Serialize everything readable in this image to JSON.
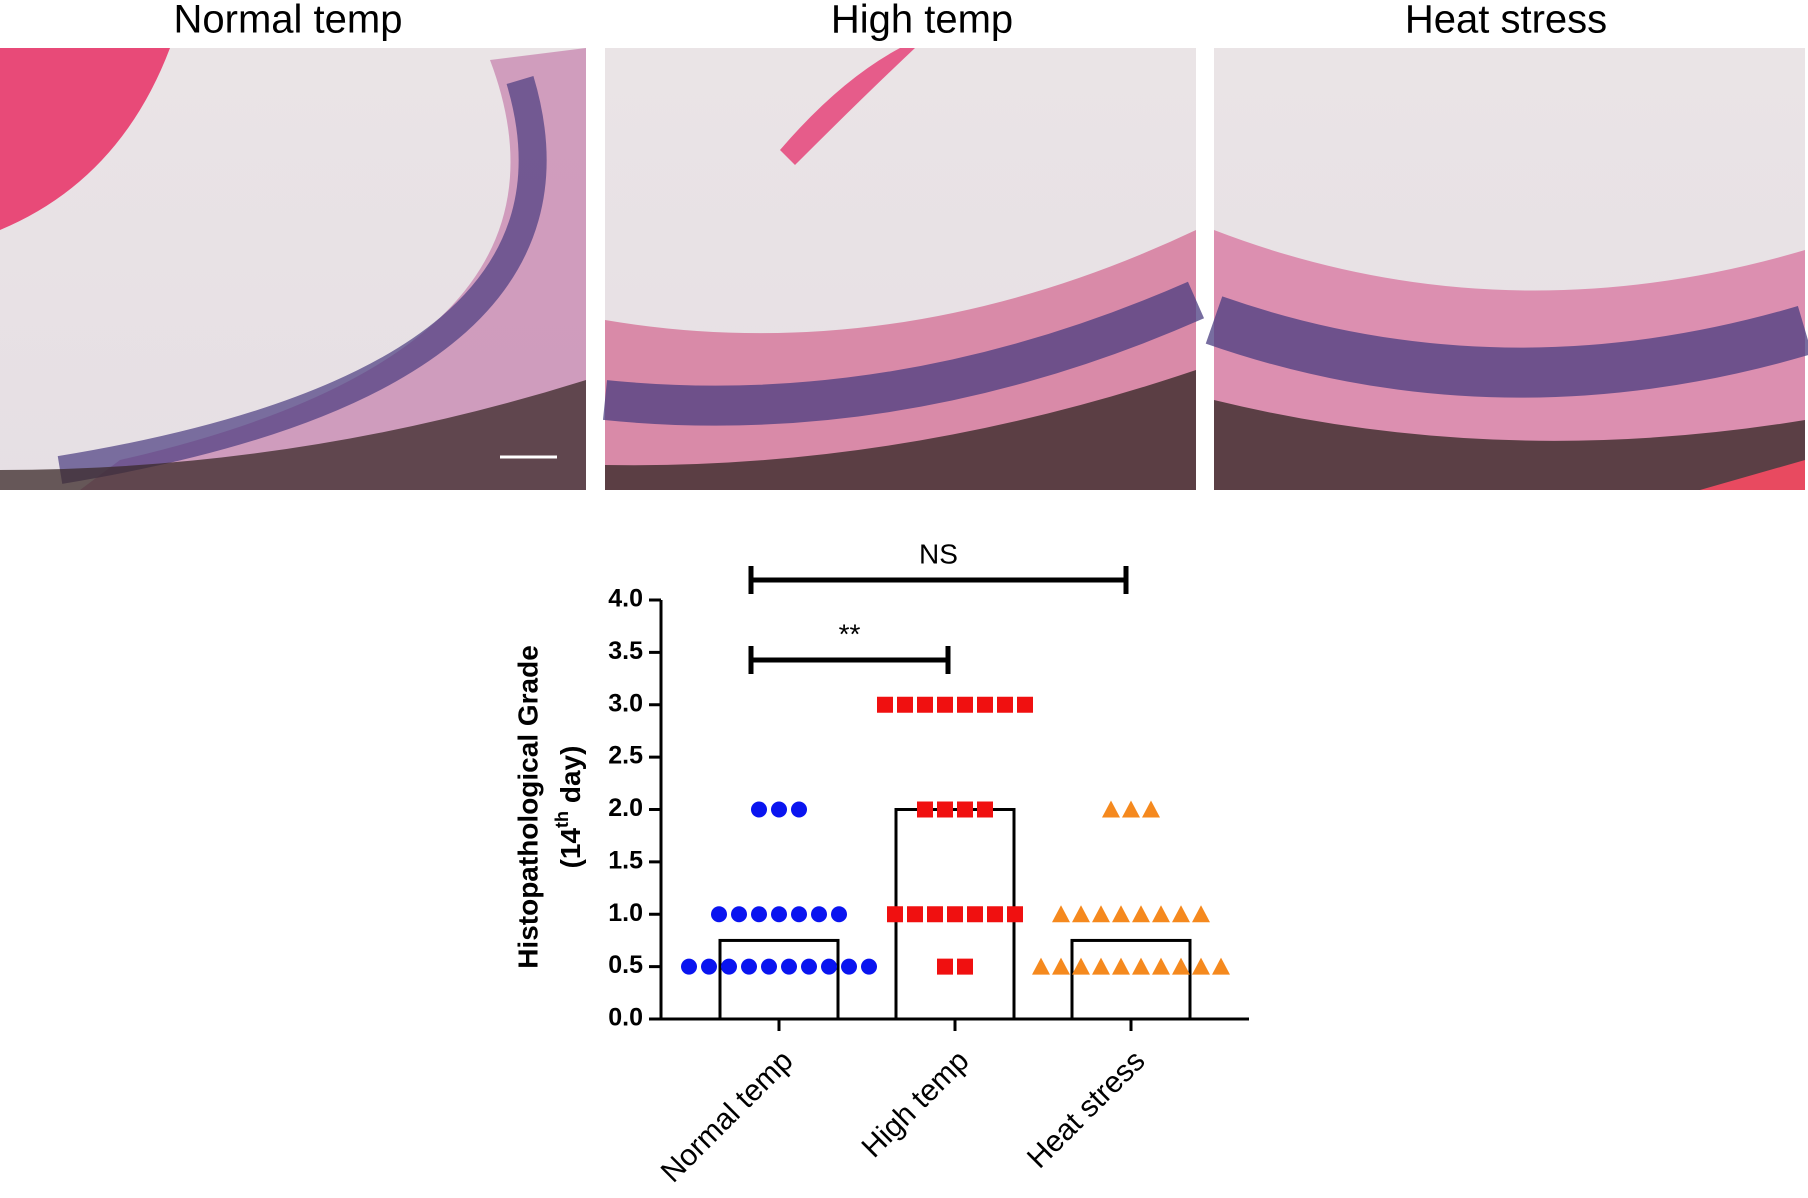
{
  "panels": [
    {
      "title": "Normal temp"
    },
    {
      "title": "High temp"
    },
    {
      "title": "Heat stress"
    }
  ],
  "chart_data": {
    "type": "bar",
    "ylabel": [
      "Histopathological Grade",
      "(14",
      "th",
      " day)"
    ],
    "categories": [
      "Normal temp",
      "High temp",
      "Heat stress"
    ],
    "values": [
      0.75,
      2,
      0.75
    ],
    "bar_color": "#ffffff",
    "points": [
      {
        "color": "#0a14f0",
        "marker": "circle",
        "values": [
          2,
          2,
          2,
          1,
          1,
          1,
          1,
          1,
          1,
          1,
          0.5,
          0.5,
          0.5,
          0.5,
          0.5,
          0.5,
          0.5,
          0.5,
          0.5,
          0.5
        ]
      },
      {
        "color": "#f01010",
        "marker": "square",
        "values": [
          3,
          3,
          3,
          3,
          3,
          3,
          3,
          3,
          2,
          2,
          2,
          2,
          1,
          1,
          1,
          1,
          1,
          1,
          1,
          0.5,
          0.5
        ]
      },
      {
        "color": "#f5891e",
        "marker": "triangle",
        "values": [
          2,
          2,
          2,
          1,
          1,
          1,
          1,
          1,
          1,
          1,
          1,
          0.5,
          0.5,
          0.5,
          0.5,
          0.5,
          0.5,
          0.5,
          0.5,
          0.5,
          0.5
        ]
      }
    ],
    "ylim": [
      0,
      4
    ],
    "yticks": [
      {
        "value": 0,
        "label": "0.0"
      },
      {
        "value": 0.5,
        "label": "0.5"
      },
      {
        "value": 1,
        "label": "1.0"
      },
      {
        "value": 1.5,
        "label": "1.5"
      },
      {
        "value": 2,
        "label": "2.0"
      },
      {
        "value": 2.5,
        "label": "2.5"
      },
      {
        "value": 3,
        "label": "3.0"
      },
      {
        "value": 3.5,
        "label": "3.5"
      },
      {
        "value": 4,
        "label": "4.0"
      }
    ],
    "annotations": [
      {
        "text": "**",
        "between": [
          "Normal temp",
          "High temp"
        ]
      },
      {
        "text": "NS",
        "between": [
          "Normal temp",
          "Heat stress"
        ]
      }
    ]
  }
}
